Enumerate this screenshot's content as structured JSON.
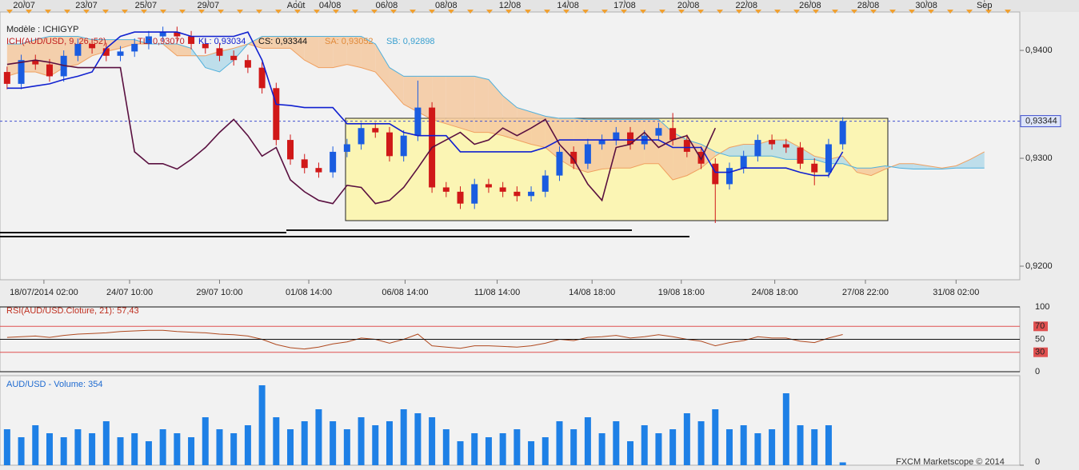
{
  "chart_data": [
    {
      "type": "candlestick",
      "legend": {
        "model": "Modèle : ICHIGYP",
        "ich": "ICH(AUD/USD, 9, 26, 52)",
        "tl": "TL: 0,93070",
        "kl": "KL: 0,93034",
        "cs": "CS: 0,93344",
        "sa": "SA: 0,93052",
        "sb": "SB: 0,92898"
      },
      "xlim": [
        0,
        72
      ],
      "xticks": [
        {
          "value": 3.1,
          "label": "18/07/2014 02:00"
        },
        {
          "value": 9.15,
          "label": "24/07 10:00"
        },
        {
          "value": 15.5,
          "label": "29/07 10:00"
        },
        {
          "value": 21.8,
          "label": "01/08 14:00"
        },
        {
          "value": 28.6,
          "label": "06/08 14:00"
        },
        {
          "value": 35.1,
          "label": "11/08 14:00"
        },
        {
          "value": 41.8,
          "label": "14/08 18:00"
        },
        {
          "value": 48.1,
          "label": "19/08 18:00"
        },
        {
          "value": 54.7,
          "label": "24/08 18:00"
        },
        {
          "value": 61.1,
          "label": "27/08 22:00"
        },
        {
          "value": 67.5,
          "label": "31/08 02:00"
        }
      ],
      "x2ticks": [
        {
          "value": 1.7,
          "label": "20/07"
        },
        {
          "value": 6.1,
          "label": "23/07"
        },
        {
          "value": 10.3,
          "label": "25/07"
        },
        {
          "value": 14.7,
          "label": "29/07"
        },
        {
          "value": 20.9,
          "label": "Août"
        },
        {
          "value": 23.3,
          "label": "04/08"
        },
        {
          "value": 27.3,
          "label": "06/08"
        },
        {
          "value": 31.5,
          "label": "08/08"
        },
        {
          "value": 36.0,
          "label": "12/08"
        },
        {
          "value": 40.1,
          "label": "14/08"
        },
        {
          "value": 44.1,
          "label": "17/08"
        },
        {
          "value": 48.6,
          "label": "20/08"
        },
        {
          "value": 52.7,
          "label": "22/08"
        },
        {
          "value": 57.2,
          "label": "26/08"
        },
        {
          "value": 61.3,
          "label": "28/08"
        },
        {
          "value": 65.4,
          "label": "30/08"
        },
        {
          "value": 69.5,
          "label": "Sep"
        }
      ],
      "ylim": [
        0.91874,
        0.94356
      ],
      "yticks": [
        {
          "value": 0.92,
          "label": "0,9200"
        },
        {
          "value": 0.93,
          "label": "0,9300"
        },
        {
          "value": 0.94,
          "label": "0,9400"
        }
      ],
      "last_price": {
        "value": 0.93344,
        "label": "0,93344"
      },
      "up_color": "#1a5ce0",
      "down_color": "#d01818",
      "open": [
        0.938,
        0.9369,
        0.9391,
        0.9387,
        0.9376,
        0.9395,
        0.9406,
        0.9402,
        0.9395,
        0.9399,
        0.9406,
        0.9413,
        0.9417,
        0.9413,
        0.9406,
        0.9402,
        0.9395,
        0.9391,
        0.9384,
        0.9365,
        0.9317,
        0.9299,
        0.9291,
        0.9287,
        0.9306,
        0.9313,
        0.9328,
        0.9324,
        0.9302,
        0.9321,
        0.9347,
        0.9273,
        0.9269,
        0.9258,
        0.9276,
        0.9273,
        0.9269,
        0.9265,
        0.9269,
        0.9284,
        0.9306,
        0.9295,
        0.9313,
        0.9317,
        0.9324,
        0.9313,
        0.9321,
        0.9328,
        0.9317,
        0.9306,
        0.9295,
        0.9276,
        0.9291,
        0.9302,
        0.9317,
        0.9313,
        0.931,
        0.9295,
        0.9287,
        0.9313
      ],
      "high": [
        0.9385,
        0.9396,
        0.9396,
        0.9392,
        0.94,
        0.9411,
        0.9411,
        0.9407,
        0.9404,
        0.9411,
        0.9418,
        0.9422,
        0.9422,
        0.9418,
        0.9411,
        0.9407,
        0.94,
        0.9396,
        0.9389,
        0.937,
        0.9322,
        0.9304,
        0.9296,
        0.9311,
        0.9318,
        0.9333,
        0.9333,
        0.9329,
        0.9326,
        0.9372,
        0.9352,
        0.9278,
        0.9274,
        0.9281,
        0.9281,
        0.9278,
        0.9274,
        0.9274,
        0.9289,
        0.9311,
        0.9311,
        0.9318,
        0.9322,
        0.9329,
        0.9329,
        0.9326,
        0.9333,
        0.9342,
        0.9322,
        0.9311,
        0.93,
        0.9296,
        0.9307,
        0.9322,
        0.9322,
        0.9318,
        0.9315,
        0.93,
        0.9318,
        0.9338
      ],
      "low": [
        0.9364,
        0.9364,
        0.9382,
        0.9371,
        0.9371,
        0.939,
        0.9397,
        0.939,
        0.939,
        0.9394,
        0.9401,
        0.9408,
        0.9408,
        0.9401,
        0.9397,
        0.939,
        0.9386,
        0.9379,
        0.936,
        0.9312,
        0.9294,
        0.9286,
        0.9282,
        0.9282,
        0.9301,
        0.9308,
        0.9319,
        0.9297,
        0.9297,
        0.9316,
        0.9268,
        0.9264,
        0.9253,
        0.9253,
        0.9268,
        0.9264,
        0.926,
        0.926,
        0.9264,
        0.9279,
        0.929,
        0.929,
        0.9308,
        0.9312,
        0.9308,
        0.9308,
        0.9316,
        0.9312,
        0.9301,
        0.929,
        0.924,
        0.9271,
        0.9286,
        0.9297,
        0.9308,
        0.9305,
        0.929,
        0.9275,
        0.9282,
        0.9308
      ],
      "close": [
        0.9369,
        0.9391,
        0.9387,
        0.9376,
        0.9395,
        0.9406,
        0.9402,
        0.9395,
        0.9399,
        0.9406,
        0.9413,
        0.9417,
        0.9413,
        0.9406,
        0.9402,
        0.9395,
        0.9391,
        0.9384,
        0.9365,
        0.9317,
        0.9299,
        0.9291,
        0.9287,
        0.9306,
        0.9313,
        0.9328,
        0.9324,
        0.9302,
        0.9321,
        0.9347,
        0.9273,
        0.9269,
        0.9258,
        0.9276,
        0.9273,
        0.9269,
        0.9265,
        0.9269,
        0.9284,
        0.9306,
        0.9295,
        0.9313,
        0.9317,
        0.9324,
        0.9313,
        0.9321,
        0.9328,
        0.9317,
        0.9306,
        0.9295,
        0.9276,
        0.9291,
        0.9302,
        0.9317,
        0.9313,
        0.931,
        0.9295,
        0.9287,
        0.9313,
        0.93344
      ],
      "lines": [
        {
          "color": "#1020d0",
          "values": [
            0.9365,
            0.9365,
            0.9367,
            0.9369,
            0.9373,
            0.9376,
            0.938,
            0.9402,
            0.9413,
            0.9417,
            0.9417,
            0.9417,
            0.9417,
            0.9413,
            0.9413,
            0.9413,
            0.9413,
            0.9417,
            0.9391,
            0.935,
            0.9349,
            0.9347,
            0.9347,
            0.9347,
            0.9332,
            0.9332,
            0.9332,
            0.9332,
            0.9324,
            0.9321,
            0.9321,
            0.9321,
            0.9306,
            0.9306,
            0.9306,
            0.9306,
            0.9306,
            0.9306,
            0.931,
            0.9317,
            0.9317,
            0.9317,
            0.9317,
            0.9317,
            0.9317,
            0.9317,
            0.9317,
            0.931,
            0.931,
            0.931,
            0.9287,
            0.9287,
            0.9291,
            0.9291,
            0.9291,
            0.9291,
            0.9287,
            0.9284,
            0.9284,
            0.9306
          ]
        },
        {
          "color": "#5a1040",
          "values": [
            0.9387,
            0.9389,
            0.9391,
            0.9389,
            0.9386,
            0.9384,
            0.9384,
            0.9384,
            0.9384,
            0.9306,
            0.9295,
            0.9295,
            0.929,
            0.9299,
            0.931,
            0.9324,
            0.9336,
            0.9321,
            0.9302,
            0.931,
            0.928,
            0.9269,
            0.9261,
            0.9258,
            0.9275,
            0.9273,
            0.9258,
            0.9261,
            0.9273,
            0.9291,
            0.931,
            0.9317,
            0.9324,
            0.9313,
            0.9317,
            0.9328,
            0.9321,
            0.9328,
            0.9336,
            0.9313,
            0.9299,
            0.9276,
            0.9261,
            0.931,
            0.9313,
            0.9324,
            0.931,
            0.9317,
            0.9321,
            0.9299,
            0.9328,
            null,
            null,
            null,
            null,
            null,
            null,
            null,
            null,
            null
          ]
        }
      ],
      "span_a": {
        "color": "#f0a060",
        "values": [
          0.9376,
          0.938,
          0.938,
          0.9376,
          0.9384,
          0.9387,
          0.9395,
          0.9399,
          0.9402,
          0.9406,
          0.9406,
          0.9406,
          0.9395,
          0.9395,
          0.9395,
          0.9399,
          0.9402,
          0.9406,
          0.9402,
          0.9402,
          0.9402,
          0.9391,
          0.9384,
          0.9384,
          0.9387,
          0.9384,
          0.938,
          0.9365,
          0.935,
          0.9343,
          0.9336,
          0.9332,
          0.9328,
          0.9324,
          0.9324,
          0.9321,
          0.9317,
          0.9313,
          0.931,
          0.9299,
          0.9291,
          0.9287,
          0.929,
          0.9291,
          0.9291,
          0.9295,
          0.9295,
          0.928,
          0.9284,
          0.9291,
          0.9302,
          0.931,
          0.9313,
          0.9313,
          0.9317,
          0.9317,
          0.931,
          0.9302,
          0.9299,
          0.9302,
          0.9287,
          0.9284,
          0.929,
          0.9295,
          0.9295,
          0.9293,
          0.9291,
          0.9293,
          0.9299,
          0.9306
        ]
      },
      "span_b": {
        "color": "#50b0dc",
        "values": [
          0.9406,
          0.9406,
          0.941,
          0.9413,
          0.9413,
          0.9413,
          0.941,
          0.941,
          0.941,
          0.941,
          0.9406,
          0.9406,
          0.9406,
          0.9402,
          0.9384,
          0.938,
          0.9391,
          0.9406,
          0.9413,
          0.9413,
          0.9413,
          0.9413,
          0.9413,
          0.9413,
          0.9413,
          0.9413,
          0.9406,
          0.9384,
          0.9376,
          0.9376,
          0.9376,
          0.9376,
          0.9376,
          0.9376,
          0.9373,
          0.9358,
          0.9347,
          0.9343,
          0.9339,
          0.9337,
          0.9337,
          0.9336,
          0.9336,
          0.9336,
          0.9336,
          0.9336,
          0.9336,
          0.9324,
          0.9317,
          0.9313,
          0.9306,
          0.9302,
          0.9302,
          0.9302,
          0.9302,
          0.9299,
          0.9299,
          0.9299,
          0.9295,
          0.9295,
          0.9291,
          0.9291,
          0.9293,
          0.9291,
          0.929,
          0.929,
          0.929,
          0.9291,
          0.9291,
          0.9291
        ]
      },
      "cloud_b_above_color": "#f5c9a0",
      "cloud_a_above_color": "#b5dbea"
    },
    {
      "type": "line",
      "title": "RSI(AUD/USD.Cloture, 21): 57,43",
      "color": "#b04a20",
      "xlim": [
        0,
        72
      ],
      "ylim": [
        0,
        100
      ],
      "yticks": [
        0,
        30,
        50,
        70,
        100
      ],
      "band_color": "#e05050",
      "values": [
        53,
        54,
        55,
        53,
        56,
        58,
        59,
        60,
        62,
        63,
        64,
        64,
        62,
        61,
        60,
        58,
        57,
        55,
        50,
        42,
        37,
        35,
        38,
        43,
        46,
        52,
        50,
        44,
        50,
        58,
        40,
        38,
        36,
        40,
        40,
        39,
        38,
        40,
        44,
        50,
        48,
        53,
        54,
        56,
        52,
        54,
        57,
        54,
        50,
        47,
        40,
        45,
        48,
        54,
        52,
        52,
        47,
        45,
        52,
        57.43
      ]
    },
    {
      "type": "bar",
      "title": "AUD/USD - Volume: 354",
      "color": "#1e80e6",
      "xlim": [
        0,
        72
      ],
      "ylim": [
        0,
        11200
      ],
      "yticks": [
        0
      ],
      "values": [
        4500,
        3500,
        5000,
        4000,
        3500,
        4500,
        4000,
        5500,
        3500,
        4000,
        3000,
        4500,
        4000,
        3500,
        6000,
        4500,
        4000,
        5000,
        10000,
        6000,
        4500,
        5500,
        7000,
        5500,
        4500,
        6000,
        5000,
        5500,
        7000,
        6500,
        6000,
        4500,
        3000,
        4000,
        3500,
        4000,
        4500,
        3000,
        3500,
        5500,
        4500,
        6000,
        4000,
        5500,
        3000,
        5000,
        4000,
        4500,
        6500,
        5500,
        7000,
        4500,
        5000,
        4000,
        4500,
        9000,
        5000,
        4500,
        5000,
        354
      ]
    }
  ],
  "footer": "FXCM Marketscope © 2014"
}
